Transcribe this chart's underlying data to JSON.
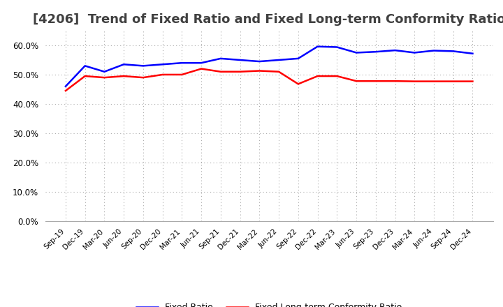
{
  "title": "[4206]  Trend of Fixed Ratio and Fixed Long-term Conformity Ratio",
  "x_labels": [
    "Sep-19",
    "Dec-19",
    "Mar-20",
    "Jun-20",
    "Sep-20",
    "Dec-20",
    "Mar-21",
    "Jun-21",
    "Sep-21",
    "Dec-21",
    "Mar-22",
    "Jun-22",
    "Sep-22",
    "Dec-22",
    "Mar-23",
    "Jun-23",
    "Sep-23",
    "Dec-23",
    "Mar-24",
    "Jun-24",
    "Sep-24",
    "Dec-24"
  ],
  "fixed_ratio": [
    0.46,
    0.53,
    0.51,
    0.535,
    0.53,
    0.535,
    0.54,
    0.54,
    0.555,
    0.55,
    0.545,
    0.55,
    0.555,
    0.596,
    0.594,
    0.575,
    0.578,
    0.583,
    0.575,
    0.582,
    0.58,
    0.572
  ],
  "fixed_lt_ratio": [
    0.445,
    0.495,
    0.49,
    0.495,
    0.49,
    0.5,
    0.5,
    0.52,
    0.51,
    0.51,
    0.513,
    0.51,
    0.468,
    0.495,
    0.495,
    0.478,
    0.478,
    0.478,
    0.477,
    0.477,
    0.477,
    0.477
  ],
  "fixed_ratio_color": "#0000FF",
  "fixed_lt_ratio_color": "#FF0000",
  "ylim": [
    0.0,
    0.65
  ],
  "yticks": [
    0.0,
    0.1,
    0.2,
    0.3,
    0.4,
    0.5,
    0.6
  ],
  "background_color": "#FFFFFF",
  "grid_color": "#AAAAAA",
  "title_fontsize": 13,
  "title_color": "#404040"
}
